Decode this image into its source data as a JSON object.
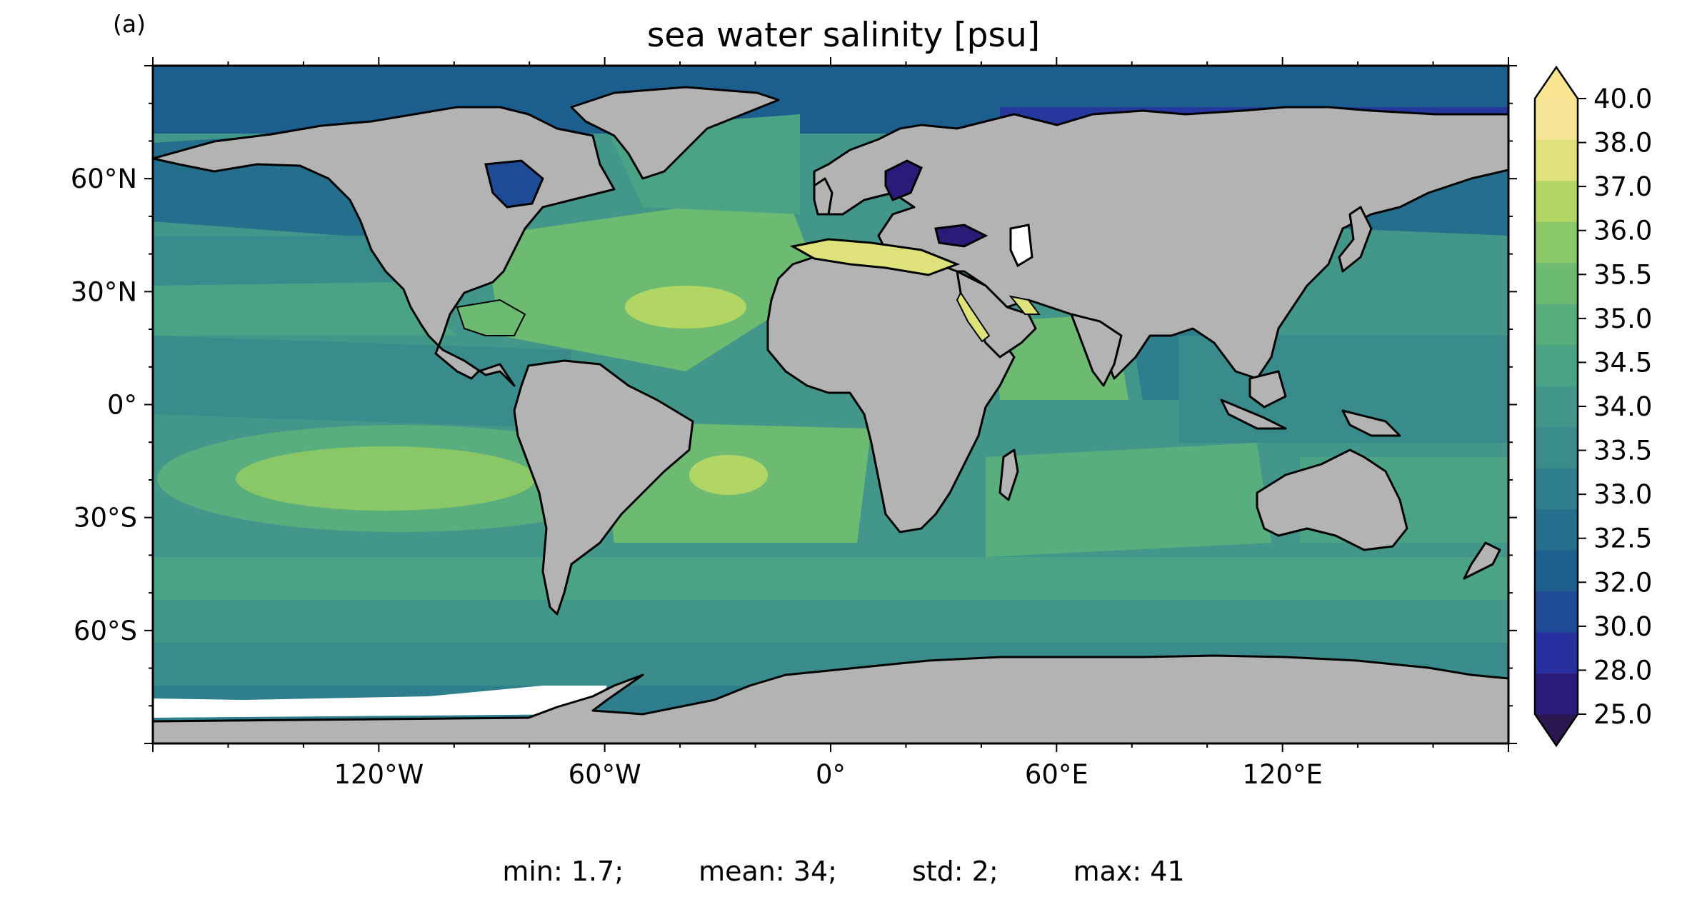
{
  "panel_label": "(a)",
  "title": "sea water salinity [psu]",
  "map": {
    "projection": "plate-carree",
    "lon_range": [
      -180,
      180
    ],
    "lat_range": [
      -90,
      90
    ],
    "land_color": "#b3b3b3",
    "coast_color": "#000000",
    "ice_color": "#ffffff",
    "lat_ticks": [
      {
        "value": 60,
        "label": "60°N"
      },
      {
        "value": 30,
        "label": "30°N"
      },
      {
        "value": 0,
        "label": "0°"
      },
      {
        "value": -30,
        "label": "30°S"
      },
      {
        "value": -60,
        "label": "60°S"
      }
    ],
    "lon_ticks": [
      {
        "value": -120,
        "label": "120°W"
      },
      {
        "value": -60,
        "label": "60°W"
      },
      {
        "value": 0,
        "label": "0°"
      },
      {
        "value": 60,
        "label": "60°E"
      },
      {
        "value": 120,
        "label": "120°E"
      }
    ]
  },
  "colorbar": {
    "extend": "both",
    "levels": [
      "25.0",
      "28.0",
      "30.0",
      "32.0",
      "32.5",
      "33.0",
      "33.5",
      "34.0",
      "34.5",
      "35.0",
      "35.5",
      "36.0",
      "37.0",
      "38.0",
      "40.0"
    ],
    "colors": [
      "#2a1b78",
      "#2830a0",
      "#1f4a96",
      "#1c5f8f",
      "#246f8d",
      "#2f7e8e",
      "#398b8c",
      "#42978a",
      "#4ba385",
      "#59ae7d",
      "#6dba72",
      "#8ac867",
      "#b2d664",
      "#dfe17b",
      "#f6e596"
    ],
    "under_color": "#2b1850",
    "over_color": "#fae492"
  },
  "stats": [
    {
      "label": "min: 1.7;"
    },
    {
      "label": "mean: 34;"
    },
    {
      "label": "std: 2;"
    },
    {
      "label": "max: 41"
    }
  ]
}
